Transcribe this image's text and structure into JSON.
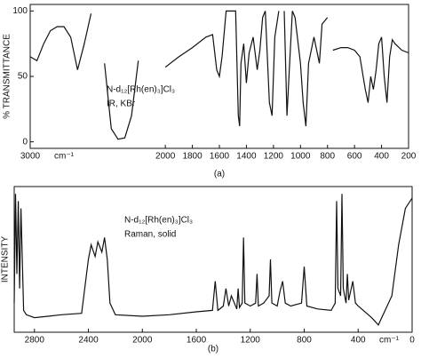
{
  "chart_data": [
    {
      "type": "line",
      "y_label": "% TRANSMITTANCE",
      "x_unit": "cm⁻¹",
      "annotation": [
        "N-d₁₂[Rh(en)₃]Cl₃",
        "IR, KBr"
      ],
      "caption": "(a)",
      "xlim": [
        3000,
        200
      ],
      "ylim": [
        -5,
        105
      ],
      "xticks": [
        3000,
        2000,
        1800,
        1600,
        1400,
        1200,
        1000,
        800,
        600,
        400,
        200
      ],
      "yticks": [
        0,
        50,
        100
      ],
      "x": [
        3000,
        2950,
        2900,
        2850,
        2800,
        2750,
        2700,
        2650,
        2600,
        2550,
        2500,
        2450,
        2400,
        2350,
        2300,
        2250,
        2200,
        2100,
        2000,
        1900,
        1800,
        1700,
        1650,
        1620,
        1600,
        1580,
        1550,
        1480,
        1460,
        1450,
        1440,
        1420,
        1400,
        1380,
        1350,
        1320,
        1300,
        1280,
        1260,
        1230,
        1210,
        1190,
        1160,
        1150,
        1120,
        1100,
        1080,
        1060,
        1040,
        1000,
        980,
        960,
        940,
        900,
        860,
        840,
        800,
        780,
        760,
        700,
        650,
        600,
        560,
        520,
        500,
        480,
        460,
        440,
        420,
        400,
        380,
        360,
        340,
        320,
        300,
        250,
        200
      ],
      "series": [
        {
          "color": "#111111",
          "values": [
            65,
            62,
            75,
            85,
            88,
            88,
            80,
            55,
            75,
            98,
            null,
            60,
            10,
            2,
            3,
            20,
            62,
            null,
            57,
            65,
            72,
            80,
            82,
            55,
            50,
            65,
            100,
            100,
            20,
            12,
            60,
            75,
            45,
            68,
            80,
            55,
            70,
            95,
            100,
            30,
            20,
            80,
            100,
            null,
            100,
            20,
            60,
            100,
            95,
            60,
            30,
            12,
            60,
            80,
            60,
            90,
            95,
            null,
            70,
            72,
            72,
            70,
            65,
            40,
            30,
            50,
            40,
            55,
            75,
            80,
            50,
            30,
            65,
            78,
            75,
            70,
            68
          ]
        }
      ]
    },
    {
      "type": "line",
      "y_label": "INTENSITY",
      "x_unit": "cm⁻¹",
      "annotation": [
        "N-d₁₂[Rh(en)₃]Cl₃",
        "Raman, solid"
      ],
      "caption": "(b)",
      "xlim": [
        2950,
        0
      ],
      "ylim": [
        0,
        100
      ],
      "xticks": [
        2800,
        2400,
        2000,
        1600,
        1200,
        800,
        400,
        0
      ],
      "x": [
        2950,
        2940,
        2930,
        2920,
        2910,
        2900,
        2890,
        2880,
        2860,
        2800,
        2700,
        2600,
        2450,
        2400,
        2380,
        2350,
        2330,
        2300,
        2280,
        2260,
        2240,
        2200,
        2000,
        1800,
        1600,
        1480,
        1460,
        1440,
        1400,
        1380,
        1360,
        1340,
        1300,
        1290,
        1280,
        1260,
        1250,
        1240,
        1200,
        1160,
        1150,
        1140,
        1100,
        1060,
        1050,
        1040,
        1000,
        980,
        960,
        940,
        900,
        820,
        800,
        780,
        700,
        600,
        570,
        560,
        550,
        530,
        520,
        510,
        490,
        480,
        470,
        440,
        420,
        400,
        300,
        250,
        200,
        150,
        100,
        50,
        0
      ],
      "series": [
        {
          "color": "#111111",
          "values": [
            20,
            95,
            40,
            90,
            30,
            85,
            50,
            15,
            12,
            10,
            11,
            12,
            13,
            50,
            60,
            52,
            62,
            55,
            65,
            50,
            20,
            12,
            11,
            12,
            14,
            15,
            35,
            15,
            18,
            30,
            18,
            25,
            16,
            30,
            17,
            20,
            65,
            20,
            18,
            20,
            40,
            18,
            20,
            25,
            50,
            20,
            18,
            28,
            35,
            20,
            18,
            20,
            45,
            18,
            16,
            15,
            20,
            90,
            30,
            25,
            95,
            30,
            20,
            40,
            22,
            35,
            20,
            18,
            10,
            5,
            15,
            25,
            60,
            85,
            92
          ]
        }
      ]
    }
  ]
}
